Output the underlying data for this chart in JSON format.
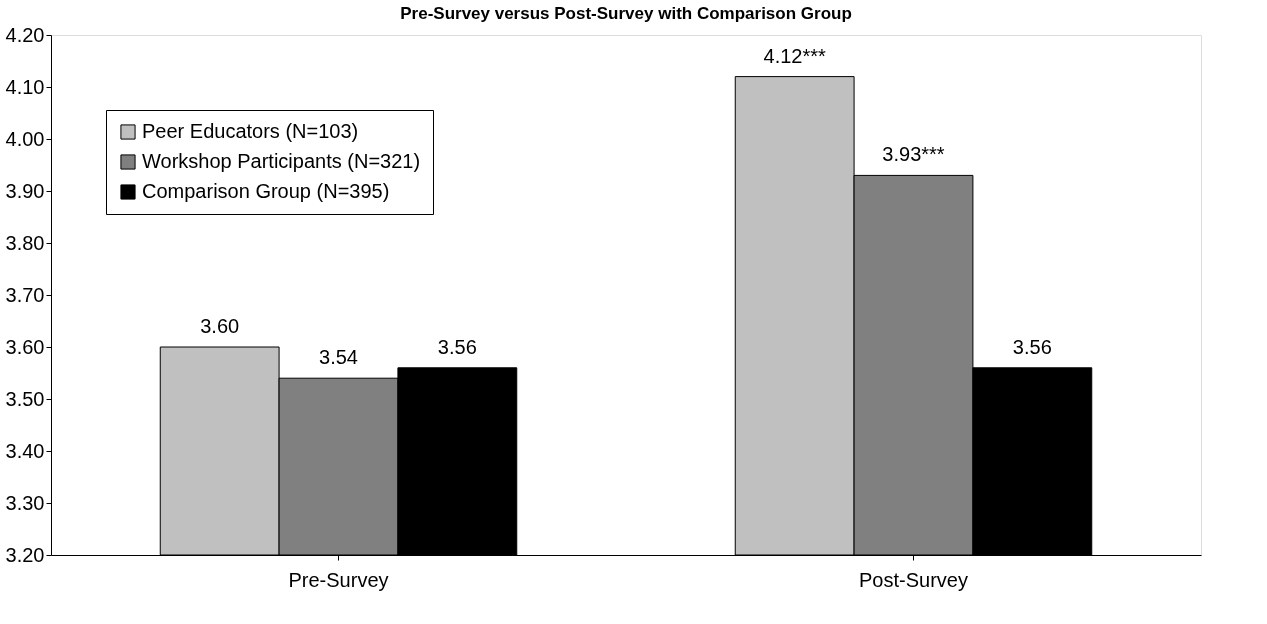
{
  "chart_data": {
    "type": "bar",
    "title": "Pre-Survey versus Post-Survey with Comparison Group",
    "categories": [
      "Pre-Survey",
      "Post-Survey"
    ],
    "series": [
      {
        "name": "Peer Educators (N=103)",
        "color": "#c0c0c0",
        "values": [
          3.6,
          4.12
        ],
        "value_labels": [
          "3.60",
          "4.12***"
        ]
      },
      {
        "name": "Workshop Participants (N=321)",
        "color": "#808080",
        "values": [
          3.54,
          3.93
        ],
        "value_labels": [
          "3.54",
          "3.93***"
        ]
      },
      {
        "name": "Comparison Group (N=395)",
        "color": "#000000",
        "values": [
          3.56,
          3.56
        ],
        "value_labels": [
          "3.56",
          "3.56"
        ]
      }
    ],
    "ylim": [
      3.2,
      4.2
    ],
    "yticks": [
      {
        "value": 3.2,
        "label": "3.20"
      },
      {
        "value": 3.3,
        "label": "3.30"
      },
      {
        "value": 3.4,
        "label": "3.40"
      },
      {
        "value": 3.5,
        "label": "3.50"
      },
      {
        "value": 3.6,
        "label": "3.60"
      },
      {
        "value": 3.7,
        "label": "3.70"
      },
      {
        "value": 3.8,
        "label": "3.80"
      },
      {
        "value": 3.9,
        "label": "3.90"
      },
      {
        "value": 4.0,
        "label": "4.00"
      },
      {
        "value": 4.1,
        "label": "4.10"
      },
      {
        "value": 4.2,
        "label": "4.20"
      }
    ],
    "grid": false,
    "legend": "top left"
  }
}
